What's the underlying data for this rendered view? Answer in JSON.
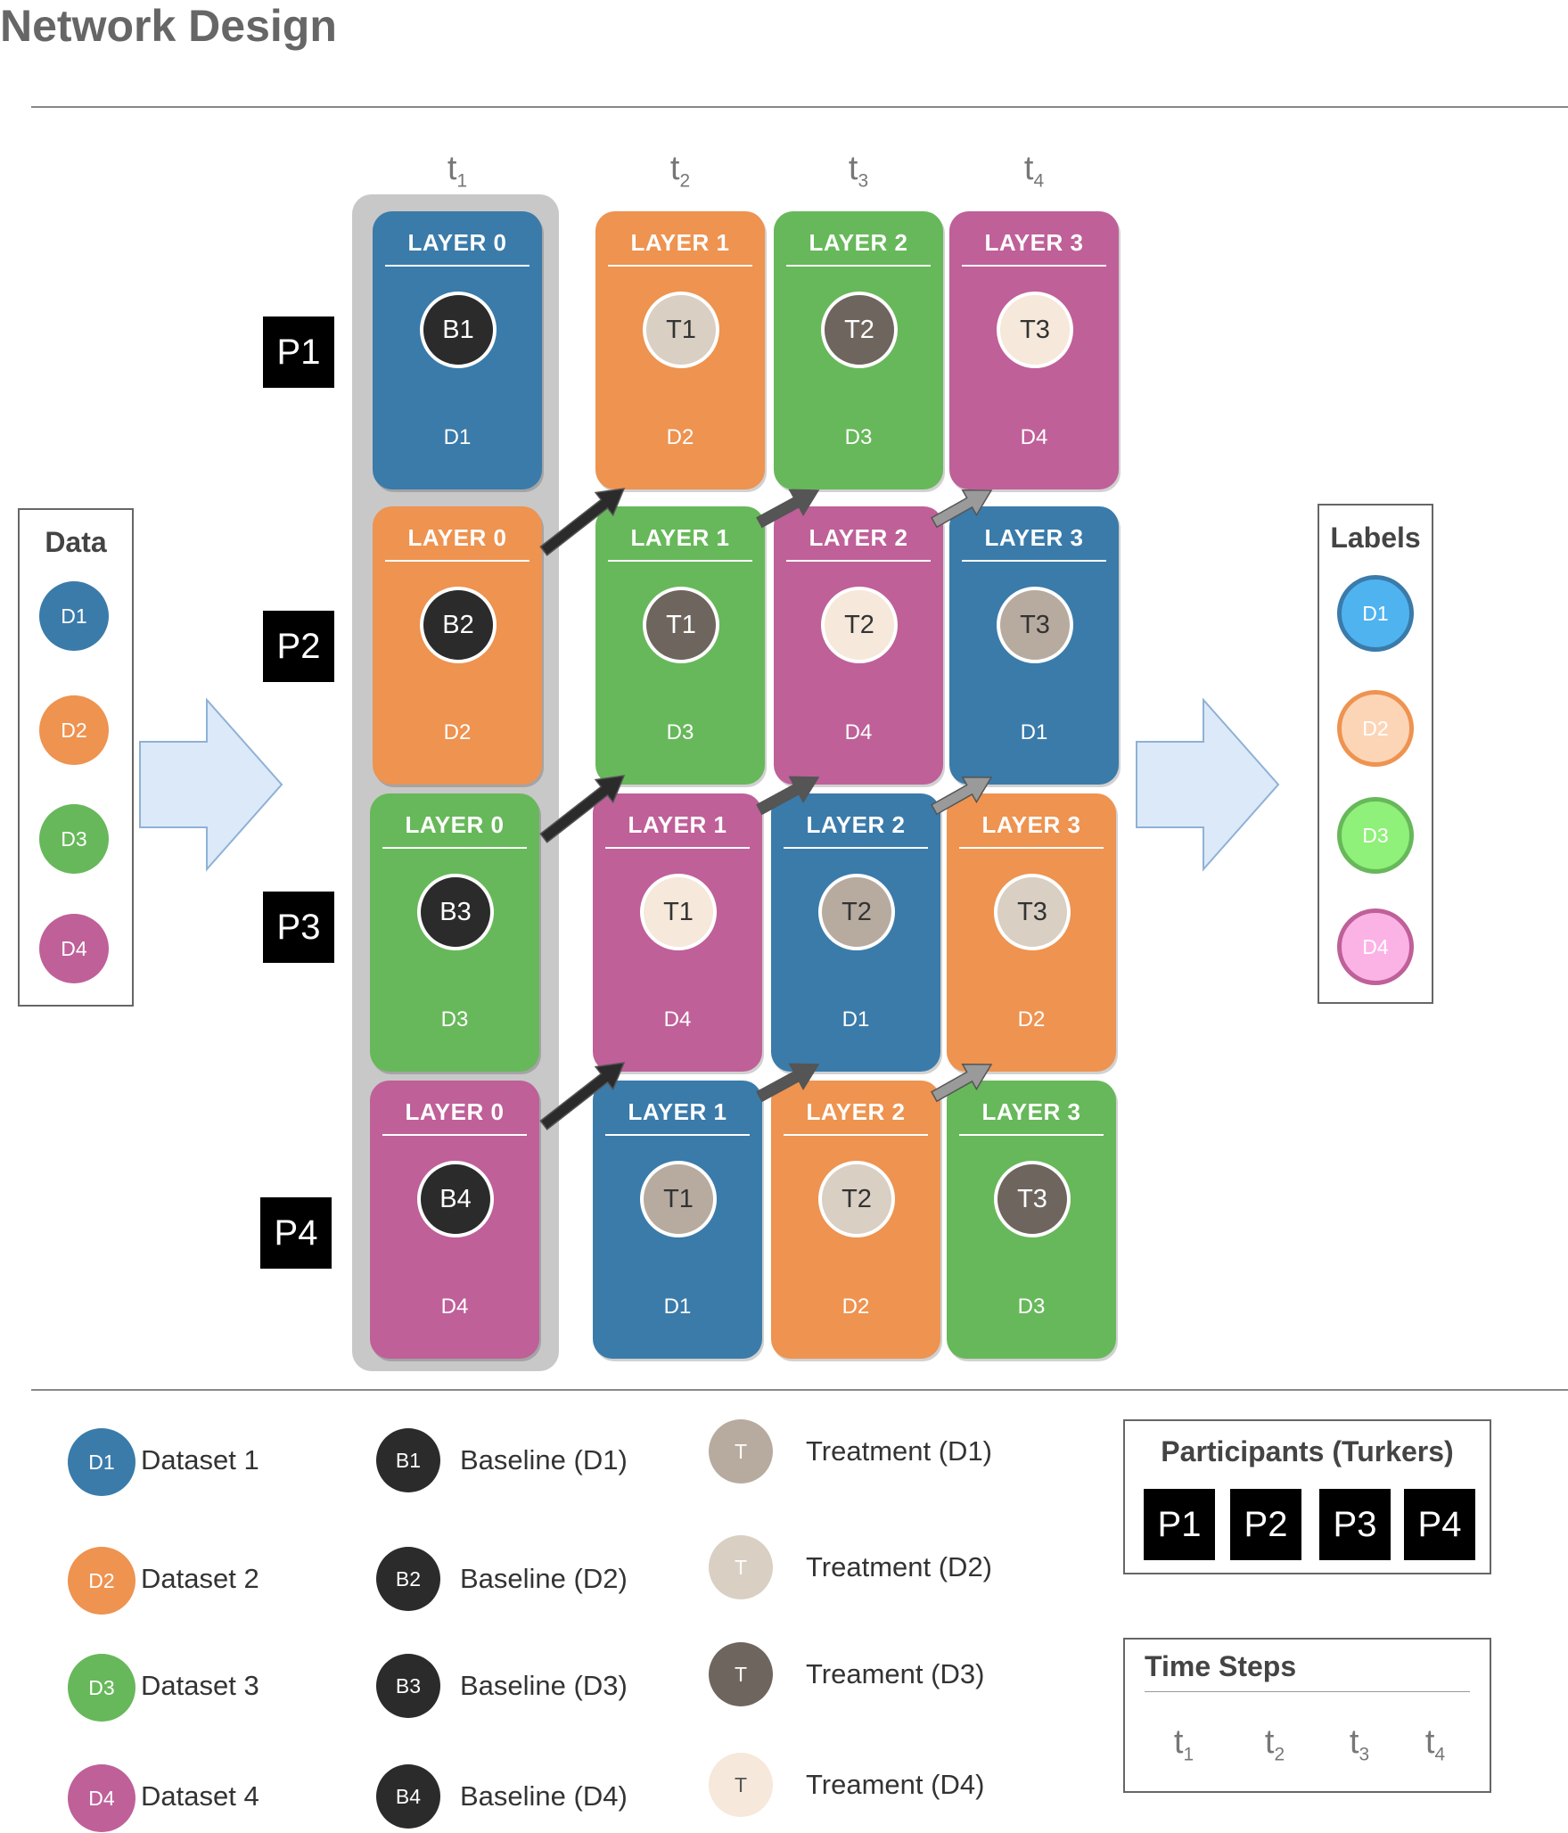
{
  "title": "Network Design",
  "colors": {
    "D1": "#3a7baa",
    "D2": "#ee9350",
    "D3": "#67b85a",
    "D4": "#bf6099",
    "baseline": "#2b2b2b",
    "T_D1": "#b7aba0",
    "T_D2": "#d9cfc3",
    "T_D3": "#6e655e",
    "T_D4": "#f6e8da"
  },
  "time_labels": [
    {
      "base": "t",
      "sub": "1"
    },
    {
      "base": "t",
      "sub": "2"
    },
    {
      "base": "t",
      "sub": "3"
    },
    {
      "base": "t",
      "sub": "4"
    }
  ],
  "participants": [
    "P1",
    "P2",
    "P3",
    "P4"
  ],
  "grid": [
    [
      {
        "layer": "LAYER 0",
        "node": "B1",
        "ds": "D1"
      },
      {
        "layer": "LAYER 1",
        "node": "T1",
        "ds": "D2"
      },
      {
        "layer": "LAYER 2",
        "node": "T2",
        "ds": "D3"
      },
      {
        "layer": "LAYER 3",
        "node": "T3",
        "ds": "D4"
      }
    ],
    [
      {
        "layer": "LAYER 0",
        "node": "B2",
        "ds": "D2"
      },
      {
        "layer": "LAYER 1",
        "node": "T1",
        "ds": "D3"
      },
      {
        "layer": "LAYER 2",
        "node": "T2",
        "ds": "D4"
      },
      {
        "layer": "LAYER 3",
        "node": "T3",
        "ds": "D1"
      }
    ],
    [
      {
        "layer": "LAYER 0",
        "node": "B3",
        "ds": "D3"
      },
      {
        "layer": "LAYER 1",
        "node": "T1",
        "ds": "D4"
      },
      {
        "layer": "LAYER 2",
        "node": "T2",
        "ds": "D1"
      },
      {
        "layer": "LAYER 3",
        "node": "T3",
        "ds": "D2"
      }
    ],
    [
      {
        "layer": "LAYER 0",
        "node": "B4",
        "ds": "D4"
      },
      {
        "layer": "LAYER 1",
        "node": "T1",
        "ds": "D1"
      },
      {
        "layer": "LAYER 2",
        "node": "T2",
        "ds": "D2"
      },
      {
        "layer": "LAYER 3",
        "node": "T3",
        "ds": "D3"
      }
    ]
  ],
  "data_box": {
    "title": "Data",
    "items": [
      "D1",
      "D2",
      "D3",
      "D4"
    ]
  },
  "labels_box": {
    "title": "Labels",
    "items": [
      "D1",
      "D2",
      "D3",
      "D4"
    ],
    "colors": [
      "#4fb3f0",
      "#fcd5b7",
      "#8ff07a",
      "#fbb3e6"
    ],
    "borders": [
      "#3a7baa",
      "#ee9350",
      "#67b85a",
      "#bf6099"
    ]
  },
  "legend": {
    "datasets": [
      {
        "code": "D1",
        "label": "Dataset 1"
      },
      {
        "code": "D2",
        "label": "Dataset 2"
      },
      {
        "code": "D3",
        "label": "Dataset 3"
      },
      {
        "code": "D4",
        "label": "Dataset 4"
      }
    ],
    "baselines": [
      {
        "code": "B1",
        "label": "Baseline (D1)"
      },
      {
        "code": "B2",
        "label": "Baseline (D2)"
      },
      {
        "code": "B3",
        "label": "Baseline (D3)"
      },
      {
        "code": "B4",
        "label": "Baseline (D4)"
      }
    ],
    "treatments": [
      {
        "code": "T",
        "label": "Treatment (D1)"
      },
      {
        "code": "T",
        "label": "Treatment (D2)"
      },
      {
        "code": "T",
        "label": "Treament (D3)"
      },
      {
        "code": "T",
        "label": "Treament (D4)"
      }
    ]
  },
  "participants_box": {
    "title": "Participants (Turkers)",
    "items": [
      "P1",
      "P2",
      "P3",
      "P4"
    ]
  },
  "timesteps_box": {
    "title": "Time Steps"
  }
}
